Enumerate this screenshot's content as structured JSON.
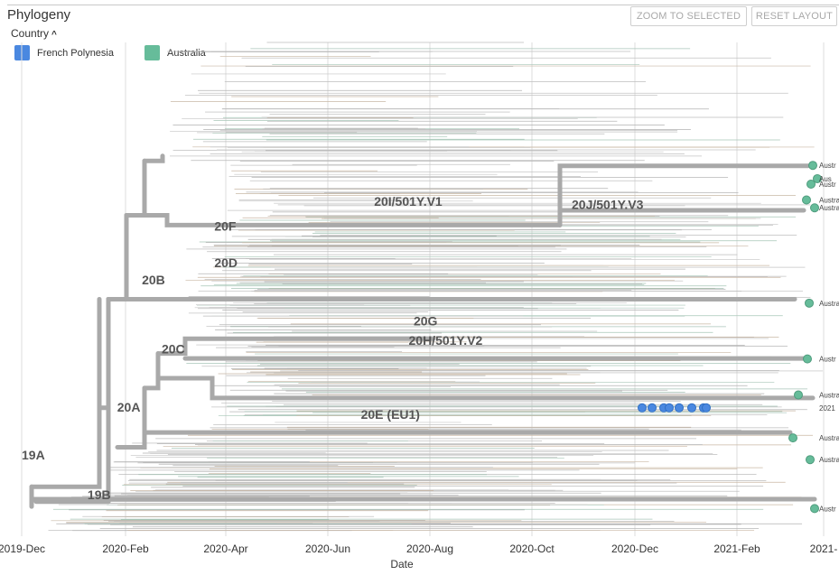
{
  "panel": {
    "title": "Phylogeny"
  },
  "controls": {
    "zoom_label": "ZOOM TO SELECTED",
    "reset_label": "RESET LAYOUT",
    "color_by_label": "Country"
  },
  "legend": [
    {
      "label": "French Polynesia",
      "color": "#4a88e0"
    },
    {
      "label": "Australia",
      "color": "#66bc9a"
    }
  ],
  "chart_data": {
    "type": "tree",
    "xlabel": "Date",
    "x_ticks": [
      "2019-Dec",
      "2020-Feb",
      "2020-Apr",
      "2020-Jun",
      "2020-Aug",
      "2020-Oct",
      "2020-Dec",
      "2021-Feb",
      "2021-"
    ],
    "x_range": [
      "2019-12-01",
      "2021-04-01"
    ],
    "grid": true,
    "colors": {
      "branch": "#a9a9a9",
      "french_polynesia": "#4a88e0",
      "australia": "#66bc9a"
    },
    "clades": [
      {
        "name": "19A",
        "date": "2019-12-01",
        "row": 0.845
      },
      {
        "name": "19B",
        "date": "2020-01-10",
        "row": 0.925
      },
      {
        "name": "20A",
        "date": "2020-01-28",
        "row": 0.748
      },
      {
        "name": "20B",
        "date": "2020-02-12",
        "row": 0.49
      },
      {
        "name": "20C",
        "date": "2020-02-24",
        "row": 0.63
      },
      {
        "name": "20D",
        "date": "2020-03-27",
        "row": 0.455
      },
      {
        "name": "20E (EU1)",
        "date": "2020-06-24",
        "row": 0.762
      },
      {
        "name": "20F",
        "date": "2020-03-27",
        "row": 0.381
      },
      {
        "name": "20G",
        "date": "2020-07-26",
        "row": 0.573
      },
      {
        "name": "20H/501Y.V2",
        "date": "2020-07-23",
        "row": 0.612
      },
      {
        "name": "20I/501Y.V1",
        "date": "2020-07-02",
        "row": 0.331
      },
      {
        "name": "20J/501Y.V3",
        "date": "2020-10-30",
        "row": 0.337
      }
    ],
    "tip_labels": [
      {
        "text": "Austr",
        "row": 0.249,
        "country": "Australia"
      },
      {
        "text": "Aus",
        "row": 0.276,
        "country": "Australia"
      },
      {
        "text": "Austr",
        "row": 0.287,
        "country": "Australia"
      },
      {
        "text": "Austra",
        "row": 0.319,
        "country": "Australia"
      },
      {
        "text": "Austra",
        "row": 0.335,
        "country": "Australia"
      },
      {
        "text": "Australia",
        "row": 0.528,
        "country": "Australia"
      },
      {
        "text": "Austr",
        "row": 0.641,
        "country": "Australia"
      },
      {
        "text": "Australia/",
        "row": 0.714,
        "country": "Australia"
      },
      {
        "text": "2021",
        "row": 0.74,
        "country": "French Polynesia"
      },
      {
        "text": "Australia/N",
        "row": 0.801,
        "country": "Australia"
      },
      {
        "text": "Austral",
        "row": 0.845,
        "country": "Australia"
      },
      {
        "text": "Austr",
        "row": 0.944,
        "country": "Australia"
      }
    ]
  }
}
